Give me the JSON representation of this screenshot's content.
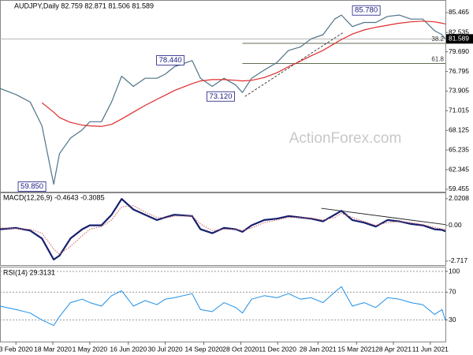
{
  "chart_data": [
    {
      "type": "line",
      "title": "AUDJPY,Daily 82.759 82.871 81.506 81.589",
      "x": [
        "2020-01-15",
        "2020-02-03",
        "2020-02-20",
        "2020-03-05",
        "2020-03-19",
        "2020-03-26",
        "2020-04-08",
        "2020-04-22",
        "2020-05-01",
        "2020-05-15",
        "2020-05-27",
        "2020-06-08",
        "2020-06-22",
        "2020-07-06",
        "2020-07-20",
        "2020-07-30",
        "2020-08-10",
        "2020-08-31",
        "2020-09-10",
        "2020-09-24",
        "2020-10-08",
        "2020-10-22",
        "2020-10-30",
        "2020-11-10",
        "2020-11-25",
        "2020-12-10",
        "2020-12-24",
        "2021-01-07",
        "2021-01-20",
        "2021-02-03",
        "2021-02-17",
        "2021-02-25",
        "2021-03-10",
        "2021-03-24",
        "2021-04-07",
        "2021-04-21",
        "2021-05-05",
        "2021-05-19",
        "2021-06-02",
        "2021-06-16",
        "2021-06-25",
        "2021-06-29"
      ],
      "series": [
        {
          "color": "#4f7489",
          "values": [
            74.3,
            73.4,
            72.3,
            68.8,
            60.2,
            64.7,
            67.0,
            68.2,
            69.4,
            69.4,
            72.3,
            76.1,
            74.6,
            75.8,
            75.8,
            76.4,
            77.5,
            78.4,
            75.8,
            74.6,
            75.8,
            74.8,
            73.7,
            75.8,
            77.0,
            78.1,
            79.9,
            80.4,
            81.6,
            82.2,
            84.5,
            85.1,
            83.4,
            84.0,
            84.0,
            84.9,
            85.1,
            84.5,
            84.5,
            82.8,
            82.2,
            81.6
          ]
        },
        {
          "color": "#e02b2b",
          "values": [
            null,
            null,
            null,
            72.2,
            70.8,
            70.0,
            69.3,
            68.9,
            68.8,
            68.7,
            69.0,
            69.8,
            70.8,
            71.8,
            72.7,
            73.3,
            74.0,
            75.0,
            75.4,
            75.6,
            75.6,
            75.5,
            75.4,
            75.5,
            75.9,
            76.6,
            77.5,
            78.3,
            79.1,
            79.9,
            80.9,
            81.5,
            82.3,
            82.9,
            83.3,
            83.6,
            83.9,
            84.1,
            84.2,
            84.1,
            83.9,
            83.8
          ]
        }
      ],
      "ylim": [
        59.1,
        86.85
      ],
      "yticks": [
        85.465,
        82.535,
        {
          "value": 79.69,
          "label": "79.690"
        },
        76.795,
        73.905,
        71.015,
        68.125,
        65.235,
        62.345,
        59.455
      ],
      "last_price": 81.589,
      "fib_levels": [
        {
          "label": "38.2",
          "value": 80.94,
          "start": "2020-10-30"
        },
        {
          "label": "61.8",
          "value": 77.96,
          "start": "2020-10-30"
        }
      ],
      "annotations": [
        {
          "label": "85.780",
          "value": 85.78,
          "x": "2021-02-25",
          "side": "right"
        },
        {
          "label": "78.440",
          "value": 78.44,
          "x": "2020-08-31",
          "side": "left"
        },
        {
          "label": "73.120",
          "value": 73.12,
          "x": "2020-10-30",
          "side": "left"
        },
        {
          "label": "59.850",
          "value": 59.85,
          "x": "2020-03-19",
          "side": "left"
        }
      ],
      "trendlines": [
        {
          "x": [
            "2020-11-02",
            "2021-02-28"
          ],
          "y": [
            73.12,
            82.6
          ]
        }
      ],
      "watermark": "ActionForex.com"
    },
    {
      "type": "line",
      "title": "MACD(12,26,9) -0.4643 -0.3085",
      "x": [
        "2020-01-15",
        "2020-02-03",
        "2020-02-20",
        "2020-03-05",
        "2020-03-19",
        "2020-03-26",
        "2020-04-08",
        "2020-04-22",
        "2020-05-01",
        "2020-05-15",
        "2020-05-27",
        "2020-06-08",
        "2020-06-22",
        "2020-07-06",
        "2020-07-20",
        "2020-07-30",
        "2020-08-10",
        "2020-08-31",
        "2020-09-10",
        "2020-09-24",
        "2020-10-08",
        "2020-10-22",
        "2020-10-30",
        "2020-11-10",
        "2020-11-25",
        "2020-12-10",
        "2020-12-24",
        "2021-01-07",
        "2021-01-20",
        "2021-02-03",
        "2021-02-17",
        "2021-02-25",
        "2021-03-10",
        "2021-03-24",
        "2021-04-07",
        "2021-04-21",
        "2021-05-05",
        "2021-05-19",
        "2021-06-02",
        "2021-06-16",
        "2021-06-25",
        "2021-06-29"
      ],
      "series": [
        {
          "color": "#15206e",
          "width": 2.2,
          "values": [
            -0.3,
            -0.2,
            -0.4,
            -1.0,
            -2.6,
            -2.3,
            -1.0,
            -0.3,
            0.0,
            0.0,
            0.8,
            2.0,
            1.2,
            0.8,
            0.4,
            0.6,
            0.8,
            0.7,
            -0.3,
            -0.6,
            -0.2,
            -0.3,
            -0.5,
            0.0,
            0.4,
            0.5,
            0.7,
            0.6,
            0.5,
            0.3,
            0.8,
            1.1,
            0.4,
            0.2,
            -0.1,
            0.4,
            0.3,
            0.1,
            0.0,
            -0.3,
            -0.35,
            -0.4643
          ]
        },
        {
          "color": "#d06060",
          "width": 1,
          "dash": "dotted",
          "values": [
            -0.2,
            -0.25,
            -0.3,
            -0.6,
            -1.8,
            -2.2,
            -1.6,
            -0.8,
            -0.3,
            -0.1,
            0.4,
            1.4,
            1.5,
            1.0,
            0.6,
            0.55,
            0.7,
            0.7,
            0.1,
            -0.4,
            -0.3,
            -0.3,
            -0.4,
            -0.2,
            0.2,
            0.4,
            0.6,
            0.6,
            0.55,
            0.4,
            0.6,
            0.9,
            0.6,
            0.3,
            0.0,
            0.2,
            0.3,
            0.2,
            0.05,
            -0.15,
            -0.28,
            -0.3085
          ]
        }
      ],
      "ylim": [
        -2.9,
        2.25
      ],
      "yticks": [
        2.0208,
        {
          "value": 0,
          "label": "0.00"
        },
        -2.717
      ],
      "trendlines": [
        {
          "x": [
            "2021-02-01",
            "2021-06-29"
          ],
          "y": [
            1.29,
            0.05
          ]
        }
      ]
    },
    {
      "type": "line",
      "title": "RSI(14) 29.3131",
      "x": [
        "2020-01-15",
        "2020-02-03",
        "2020-02-20",
        "2020-03-05",
        "2020-03-19",
        "2020-03-26",
        "2020-04-08",
        "2020-04-22",
        "2020-05-01",
        "2020-05-15",
        "2020-05-27",
        "2020-06-08",
        "2020-06-22",
        "2020-07-06",
        "2020-07-20",
        "2020-07-30",
        "2020-08-10",
        "2020-08-31",
        "2020-09-10",
        "2020-09-24",
        "2020-10-08",
        "2020-10-22",
        "2020-10-30",
        "2020-11-10",
        "2020-11-25",
        "2020-12-10",
        "2020-12-24",
        "2021-01-07",
        "2021-01-20",
        "2021-02-03",
        "2021-02-17",
        "2021-02-25",
        "2021-03-10",
        "2021-03-24",
        "2021-04-07",
        "2021-04-21",
        "2021-05-05",
        "2021-05-19",
        "2021-06-02",
        "2021-06-16",
        "2021-06-25",
        "2021-06-29"
      ],
      "series": [
        {
          "color": "#1e8fe8",
          "width": 1,
          "values": [
            50,
            45,
            40,
            30,
            22,
            35,
            55,
            60,
            55,
            50,
            65,
            72,
            50,
            58,
            52,
            60,
            62,
            68,
            45,
            42,
            55,
            48,
            40,
            60,
            65,
            62,
            68,
            60,
            62,
            55,
            70,
            78,
            50,
            55,
            48,
            62,
            60,
            55,
            52,
            38,
            45,
            29.3131
          ]
        }
      ],
      "ylim": [
        0,
        100
      ],
      "yticks": [
        100,
        70,
        30
      ],
      "grid": "dashed",
      "xlim": [
        "2020-01-15",
        "2021-06-29"
      ],
      "xticks": [
        {
          "value": "2020-02-03",
          "label": "3 Feb 2020"
        },
        {
          "value": "2020-03-18",
          "label": "18 Mar 2020"
        },
        {
          "value": "2020-05-01",
          "label": "1 May 2020"
        },
        {
          "value": "2020-06-16",
          "label": "16 Jun 2020"
        },
        {
          "value": "2020-07-30",
          "label": "30 Jul 2020"
        },
        {
          "value": "2020-09-14",
          "label": "14 Sep 2020"
        },
        {
          "value": "2020-10-28",
          "label": "28 Oct 2020"
        },
        {
          "value": "2020-12-11",
          "label": "11 Dec 2020"
        },
        {
          "value": "2021-01-28",
          "label": "28 Jan 2021"
        },
        {
          "value": "2021-03-15",
          "label": "15 Mar 2021"
        },
        {
          "value": "2021-04-28",
          "label": "28 Apr 2021"
        },
        {
          "value": "2021-06-11",
          "label": "11 Jun 2021"
        }
      ]
    }
  ]
}
